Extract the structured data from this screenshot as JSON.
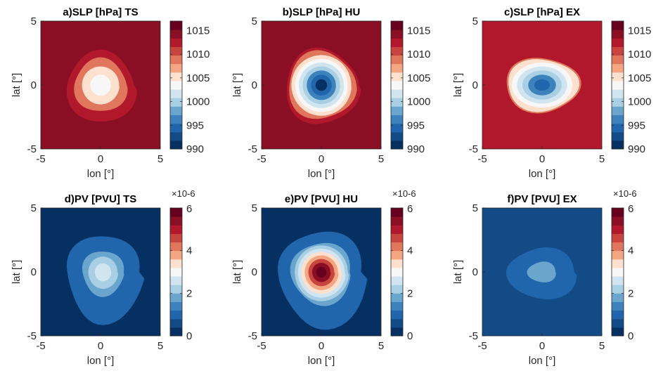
{
  "chart_data": [
    {
      "type": "contour",
      "id": "a",
      "title": "a)SLP [hPa] TS",
      "xlabel": "lon [°]",
      "ylabel": "lat [°]",
      "xlim": [
        -5,
        5
      ],
      "ylim": [
        -5,
        5
      ],
      "xticks": [
        "-5",
        "0",
        "5"
      ],
      "yticks": [
        "-5",
        "0",
        "5"
      ],
      "colorbar": {
        "ticks": [
          "990",
          "995",
          "1000",
          "1005",
          "1010",
          "1015"
        ],
        "min": 990,
        "max": 1017,
        "exponent": ""
      },
      "center": [
        0,
        0
      ],
      "levels_from_outside_in": [
        1015,
        1012,
        1009,
        1006,
        1003
      ],
      "colormap": "RdBu_r"
    },
    {
      "type": "contour",
      "id": "b",
      "title": "b)SLP [hPa] HU",
      "xlabel": "lon [°]",
      "ylabel": "lat [°]",
      "xlim": [
        -5,
        5
      ],
      "ylim": [
        -5,
        5
      ],
      "xticks": [
        "-5",
        "0",
        "5"
      ],
      "yticks": [
        "-5",
        "0",
        "5"
      ],
      "colorbar": {
        "ticks": [
          "990",
          "995",
          "1000",
          "1005",
          "1010",
          "1015"
        ],
        "min": 990,
        "max": 1017,
        "exponent": ""
      },
      "center": [
        0,
        0
      ],
      "levels_from_outside_in": [
        1015,
        1012,
        1009,
        1006,
        1004,
        1001,
        999,
        997,
        994,
        991
      ],
      "colormap": "RdBu_r"
    },
    {
      "type": "contour",
      "id": "c",
      "title": "c)SLP [hPa] EX",
      "xlabel": "lon [°]",
      "ylabel": "lat [°]",
      "xlim": [
        -5,
        5
      ],
      "ylim": [
        -5,
        5
      ],
      "xticks": [
        "-5",
        "0",
        "5"
      ],
      "yticks": [
        "-5",
        "0",
        "5"
      ],
      "colorbar": {
        "ticks": [
          "990",
          "995",
          "1000",
          "1005",
          "1010",
          "1015"
        ],
        "min": 990,
        "max": 1017,
        "exponent": ""
      },
      "center": [
        0,
        0
      ],
      "levels_from_outside_in": [
        1012,
        1009,
        1006,
        1004,
        1001,
        999,
        997,
        995
      ],
      "colormap": "RdBu_r"
    },
    {
      "type": "contour",
      "id": "d",
      "title": "d)PV [PVU] TS",
      "xlabel": "lon [°]",
      "ylabel": "lat [°]",
      "xlim": [
        -5,
        5
      ],
      "ylim": [
        -5,
        5
      ],
      "xticks": [
        "-5",
        "0",
        "5"
      ],
      "yticks": [
        "-5",
        "0",
        "5"
      ],
      "colorbar": {
        "ticks": [
          "0",
          "2",
          "4",
          "6"
        ],
        "min": 0,
        "max": 6,
        "exponent": "×10-6"
      },
      "center": [
        0.2,
        0
      ],
      "levels_from_outside_in": [
        0.2,
        0.9,
        1.6,
        2.3,
        2.8
      ],
      "colormap": "RdBu_r"
    },
    {
      "type": "contour",
      "id": "e",
      "title": "e)PV [PVU] HU",
      "xlabel": "lon [°]",
      "ylabel": "lat [°]",
      "xlim": [
        -5,
        5
      ],
      "ylim": [
        -5,
        5
      ],
      "xticks": [
        "-5",
        "0",
        "5"
      ],
      "yticks": [
        "-5",
        "0",
        "5"
      ],
      "colorbar": {
        "ticks": [
          "0",
          "2",
          "4",
          "6"
        ],
        "min": 0,
        "max": 6,
        "exponent": "×10-6"
      },
      "center": [
        0,
        0
      ],
      "levels_from_outside_in": [
        0.2,
        0.9,
        1.6,
        2.1,
        2.6,
        3.2,
        3.9,
        4.6,
        5.2,
        5.8
      ],
      "colormap": "RdBu_r"
    },
    {
      "type": "contour",
      "id": "f",
      "title": "f)PV [PVU] EX",
      "xlabel": "lon [°]",
      "ylabel": "lat [°]",
      "xlim": [
        -5,
        5
      ],
      "ylim": [
        -5,
        5
      ],
      "xticks": [
        "-5",
        "0",
        "5"
      ],
      "yticks": [
        "-5",
        "0",
        "5"
      ],
      "colorbar": {
        "ticks": [
          "0",
          "2",
          "4",
          "6"
        ],
        "min": 0,
        "max": 6,
        "exponent": "×10-6"
      },
      "center": [
        0,
        0
      ],
      "levels_from_outside_in": [
        0.6,
        0.9,
        1.6
      ],
      "colormap": "RdBu_r"
    }
  ],
  "colors": {
    "RdBu_r": [
      "#053061",
      "#134b87",
      "#2166ac",
      "#3d82bd",
      "#6aa5cd",
      "#a8cfe3",
      "#d1e5f0",
      "#f7f7f7",
      "#fde0ce",
      "#f4a582",
      "#e0765c",
      "#c8443e",
      "#b2182b",
      "#8b0f24",
      "#67001f"
    ]
  }
}
